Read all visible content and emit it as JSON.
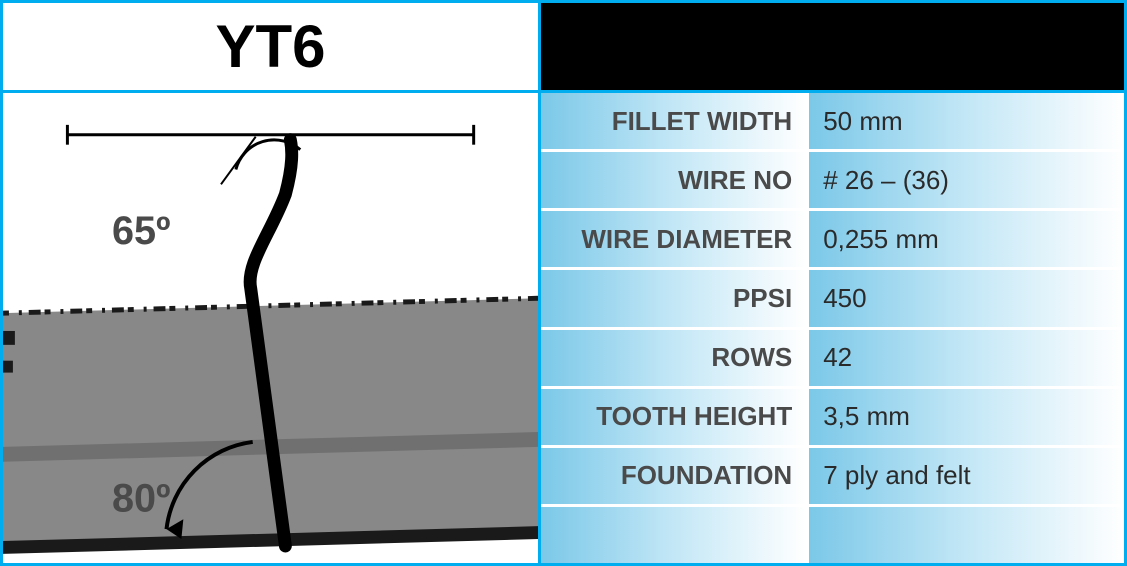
{
  "title": "YT6",
  "diagram": {
    "angle_top": "65º",
    "angle_bottom": "80º",
    "base_fill": "#888888",
    "base_line_fill": "#777777",
    "wire_color": "#000000",
    "wire_width": 12,
    "dim_line_color": "#000000",
    "text_color": "#4a4a4a",
    "text_fontsize": 40
  },
  "specs": [
    {
      "label": "FILLET WIDTH",
      "value": "50 mm"
    },
    {
      "label": "WIRE NO",
      "value": "# 26 – (36)"
    },
    {
      "label": "WIRE DIAMETER",
      "value": "0,255 mm"
    },
    {
      "label": "PPSI",
      "value": "450"
    },
    {
      "label": "ROWS",
      "value": "42"
    },
    {
      "label": "TOOTH HEIGHT",
      "value": "3,5 mm"
    },
    {
      "label": "FOUNDATION",
      "value": "7 ply and felt"
    },
    {
      "label": "",
      "value": ""
    }
  ],
  "colors": {
    "border": "#00aef0",
    "black": "#000000",
    "white": "#ffffff",
    "grad_start": "#7bc8e8",
    "grad_mid": "#c3e7f6"
  }
}
